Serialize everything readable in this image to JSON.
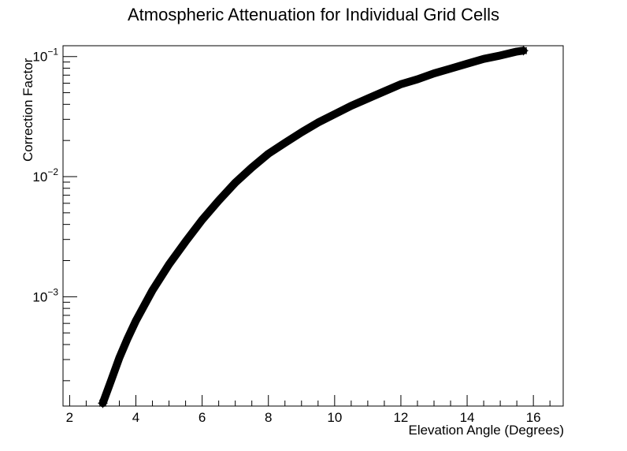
{
  "chart_data": {
    "type": "scatter",
    "title": "Atmospheric Attenuation for Individual Grid Cells",
    "xlabel": "Elevation Angle (Degrees)",
    "ylabel": "Correction Factor",
    "xlim": [
      1.8,
      16.9
    ],
    "ylim": [
      0.000123,
      0.123
    ],
    "yscale": "log",
    "x_ticks": [
      2,
      4,
      6,
      8,
      10,
      12,
      14,
      16
    ],
    "y_ticks": [
      {
        "value": 0.001,
        "base": "10",
        "exp": "−3"
      },
      {
        "value": 0.01,
        "base": "10",
        "exp": "−2"
      },
      {
        "value": 0.1,
        "base": "10",
        "exp": "−1"
      }
    ],
    "marker": "asterisk",
    "marker_color": "#000000",
    "grid": false,
    "series": [
      {
        "points": [
          [
            3.0,
            0.00013
          ],
          [
            3.25,
            0.0002
          ],
          [
            3.5,
            0.00031
          ],
          [
            3.75,
            0.00045
          ],
          [
            4.0,
            0.00063
          ],
          [
            4.5,
            0.00113
          ],
          [
            5.0,
            0.00186
          ],
          [
            5.5,
            0.00288
          ],
          [
            6.0,
            0.00436
          ],
          [
            6.5,
            0.00631
          ],
          [
            7.0,
            0.00891
          ],
          [
            7.5,
            0.0119
          ],
          [
            8.0,
            0.0155
          ],
          [
            8.5,
            0.0191
          ],
          [
            9.0,
            0.0234
          ],
          [
            9.5,
            0.0282
          ],
          [
            10.0,
            0.0331
          ],
          [
            10.5,
            0.0389
          ],
          [
            11.0,
            0.0447
          ],
          [
            11.5,
            0.0513
          ],
          [
            12.0,
            0.0588
          ],
          [
            12.5,
            0.0646
          ],
          [
            13.0,
            0.0724
          ],
          [
            13.5,
            0.0794
          ],
          [
            14.0,
            0.0871
          ],
          [
            14.5,
            0.0955
          ],
          [
            15.0,
            0.102
          ],
          [
            15.5,
            0.11
          ],
          [
            15.7,
            0.112
          ]
        ]
      }
    ]
  }
}
